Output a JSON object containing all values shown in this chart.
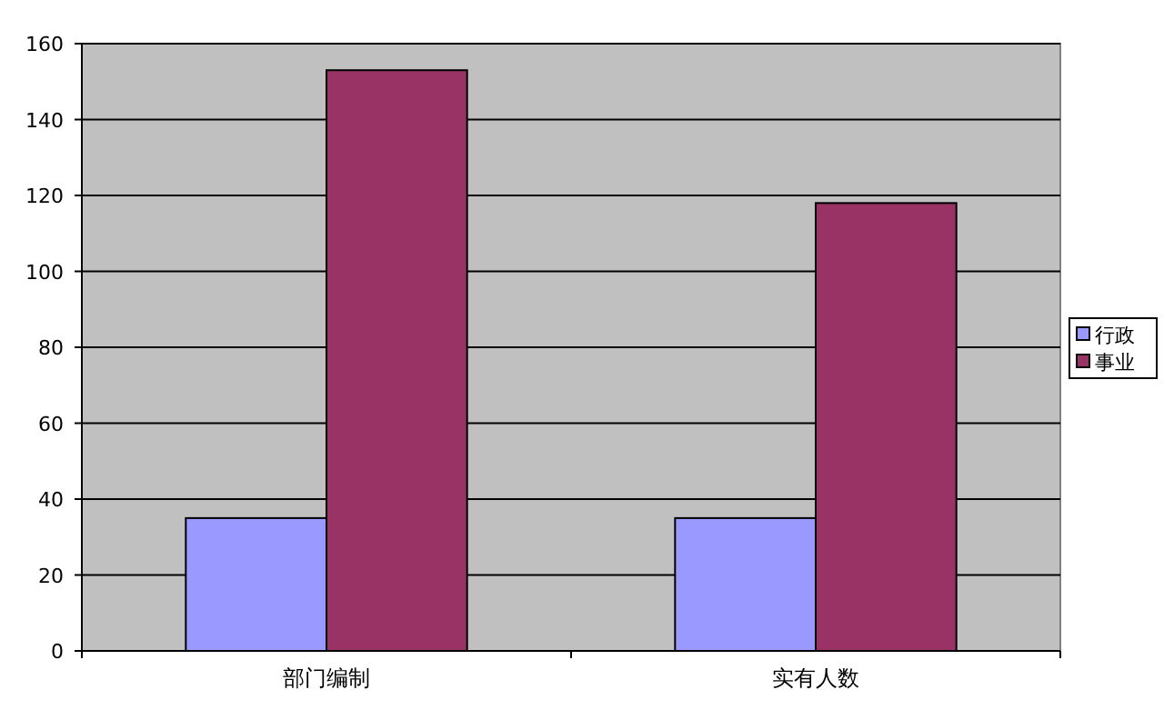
{
  "chart_data": {
    "type": "bar",
    "categories": [
      "部门编制",
      "实有人数"
    ],
    "series": [
      {
        "name": "行政",
        "color": "#9999ff",
        "values": [
          35,
          35
        ]
      },
      {
        "name": "事业",
        "color": "#993366",
        "values": [
          153,
          118
        ]
      }
    ],
    "ylim": [
      0,
      160
    ],
    "yticks": [
      0,
      20,
      40,
      60,
      80,
      100,
      120,
      140,
      160
    ],
    "grid": "y",
    "legend": "right"
  }
}
